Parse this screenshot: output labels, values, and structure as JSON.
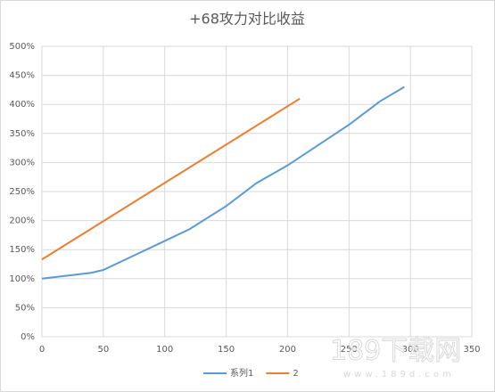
{
  "chart_data": {
    "type": "line",
    "title": "+68攻力对比收益",
    "xlim": [
      0,
      350
    ],
    "xticks": [
      0,
      50,
      100,
      150,
      200,
      250,
      300,
      350
    ],
    "ylim": [
      0,
      500
    ],
    "yticks": [
      {
        "value": 0,
        "label": "0%"
      },
      {
        "value": 50,
        "label": "50%"
      },
      {
        "value": 100,
        "label": "100%"
      },
      {
        "value": 150,
        "label": "150%"
      },
      {
        "value": 200,
        "label": "200%"
      },
      {
        "value": 250,
        "label": "250%"
      },
      {
        "value": 300,
        "label": "300%"
      },
      {
        "value": 350,
        "label": "350%"
      },
      {
        "value": 400,
        "label": "400%"
      },
      {
        "value": 450,
        "label": "450%"
      },
      {
        "value": 500,
        "label": "500%"
      }
    ],
    "grid": true,
    "legend": "bottom",
    "series": [
      {
        "name": "系列1",
        "color": "#5b9bd5",
        "x": [
          0,
          20,
          40,
          50,
          75,
          100,
          120,
          150,
          175,
          200,
          225,
          250,
          275,
          295
        ],
        "values": [
          100,
          105,
          110,
          115,
          140,
          165,
          185,
          225,
          265,
          295,
          330,
          365,
          405,
          430
        ]
      },
      {
        "name": "2",
        "color": "#ed7d31",
        "x": [
          0,
          210
        ],
        "values": [
          133,
          410
        ]
      }
    ],
    "watermark": "189下载网",
    "watermark_url": "www.189d.com"
  }
}
